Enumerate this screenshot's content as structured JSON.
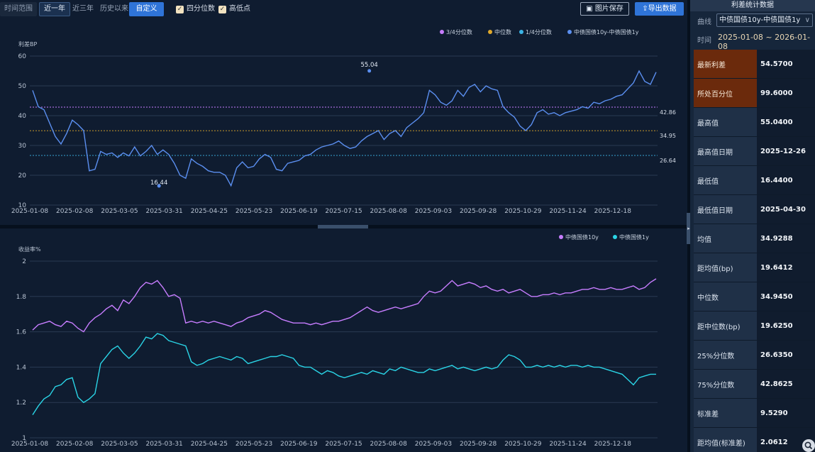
{
  "toolbar": {
    "range_label": "时间范围",
    "ranges": [
      "近一年",
      "近三年",
      "历史以来",
      "自定义"
    ],
    "active_range": "自定义",
    "checkboxes": [
      {
        "label": "四分位数",
        "checked": true
      },
      {
        "label": "高低点",
        "checked": true
      }
    ],
    "save_label": "图片保存",
    "export_label": "导出数据"
  },
  "chart_data": [
    {
      "type": "line",
      "ylabel": "利差BP",
      "ylim": [
        10,
        60
      ],
      "yticks": [
        10,
        20,
        30,
        40,
        50,
        60
      ],
      "x_ticks": [
        "2025-01-08",
        "2025-02-08",
        "2025-03-05",
        "2025-03-31",
        "2025-04-25",
        "2025-05-23",
        "2025-06-19",
        "2025-07-15",
        "2025-08-08",
        "2025-09-03",
        "2025-09-28",
        "2025-10-29",
        "2025-11-24",
        "2025-12-18"
      ],
      "legend": [
        "3/4分位数",
        "中位数",
        "1/4分位数",
        "中债国债10y-中债国债1y"
      ],
      "legend_colors": [
        "#c77dff",
        "#e0a92b",
        "#3bb4e6",
        "#5b8ff0"
      ],
      "reference_lines": [
        {
          "name": "3/4分位数",
          "value": 42.86,
          "label": "42.86",
          "color": "#c77dff"
        },
        {
          "name": "中位数",
          "value": 34.95,
          "label": "34.95",
          "color": "#e0a92b"
        },
        {
          "name": "1/4分位数",
          "value": 26.64,
          "label": "26.64",
          "color": "#3bb4e6"
        }
      ],
      "annotations": [
        {
          "label": "55.04",
          "x_index": 59.4,
          "value": 55.04
        },
        {
          "label": "16.44",
          "x_index": 22.3,
          "value": 16.44
        }
      ],
      "series": [
        {
          "name": "中债国债10y-中债国债1y",
          "color": "#5b8ff0",
          "values": [
            48.5,
            43.0,
            42.0,
            37.5,
            33.0,
            30.5,
            34.0,
            38.5,
            37.0,
            35.0,
            21.5,
            22.0,
            28.0,
            27.0,
            27.5,
            26.0,
            27.5,
            26.5,
            29.5,
            26.5,
            28.0,
            30.0,
            27.0,
            28.5,
            27.0,
            24.0,
            20.0,
            19.0,
            25.5,
            24.0,
            23.0,
            21.5,
            21.0,
            21.0,
            20.0,
            16.5,
            22.5,
            24.5,
            22.5,
            23.0,
            25.5,
            27.0,
            26.0,
            22.0,
            21.5,
            24.0,
            24.5,
            25.0,
            26.5,
            27.0,
            28.5,
            29.5,
            30.0,
            30.5,
            31.5,
            30.0,
            29.0,
            29.5,
            31.5,
            33.0,
            34.0,
            35.0,
            32.0,
            34.0,
            35.0,
            33.0,
            36.0,
            37.5,
            39.0,
            41.0,
            48.5,
            47.0,
            44.5,
            43.5,
            45.0,
            48.5,
            46.5,
            49.5,
            50.5,
            48.0,
            50.0,
            49.0,
            48.5,
            43.0,
            41.0,
            39.5,
            36.5,
            35.0,
            37.0,
            41.0,
            42.0,
            40.5,
            41.0,
            40.0,
            41.0,
            41.5,
            42.0,
            43.0,
            42.5,
            44.5,
            44.0,
            45.0,
            45.5,
            46.5,
            47.0,
            49.0,
            51.0,
            55.0,
            51.5,
            50.5,
            54.6
          ]
        }
      ]
    },
    {
      "type": "line",
      "ylabel": "收益率%",
      "ylim": [
        1,
        2
      ],
      "yticks": [
        1,
        1.2,
        1.4,
        1.6,
        1.8,
        2
      ],
      "x_ticks": [
        "2025-01-08",
        "2025-02-08",
        "2025-03-05",
        "2025-03-31",
        "2025-04-25",
        "2025-05-23",
        "2025-06-19",
        "2025-07-15",
        "2025-08-08",
        "2025-09-03",
        "2025-09-28",
        "2025-10-29",
        "2025-11-24",
        "2025-12-18"
      ],
      "legend": [
        "中债国债10y",
        "中债国债1y"
      ],
      "legend_colors": [
        "#c77dff",
        "#2ad4e6"
      ],
      "series": [
        {
          "name": "中债国债10y",
          "color": "#c77dff",
          "values": [
            1.61,
            1.64,
            1.65,
            1.66,
            1.64,
            1.63,
            1.66,
            1.65,
            1.62,
            1.6,
            1.65,
            1.68,
            1.7,
            1.73,
            1.75,
            1.72,
            1.78,
            1.76,
            1.8,
            1.85,
            1.88,
            1.87,
            1.89,
            1.85,
            1.8,
            1.81,
            1.79,
            1.65,
            1.66,
            1.65,
            1.66,
            1.65,
            1.66,
            1.65,
            1.64,
            1.63,
            1.65,
            1.66,
            1.68,
            1.69,
            1.7,
            1.72,
            1.71,
            1.69,
            1.67,
            1.66,
            1.65,
            1.65,
            1.65,
            1.64,
            1.65,
            1.64,
            1.65,
            1.66,
            1.66,
            1.67,
            1.68,
            1.7,
            1.72,
            1.74,
            1.72,
            1.71,
            1.72,
            1.73,
            1.74,
            1.73,
            1.74,
            1.75,
            1.76,
            1.8,
            1.83,
            1.82,
            1.83,
            1.86,
            1.89,
            1.86,
            1.87,
            1.88,
            1.87,
            1.85,
            1.86,
            1.84,
            1.83,
            1.84,
            1.82,
            1.83,
            1.84,
            1.82,
            1.8,
            1.8,
            1.81,
            1.81,
            1.82,
            1.81,
            1.82,
            1.82,
            1.83,
            1.84,
            1.84,
            1.85,
            1.84,
            1.84,
            1.85,
            1.84,
            1.84,
            1.85,
            1.86,
            1.84,
            1.85,
            1.88,
            1.9
          ]
        },
        {
          "name": "中债国债1y",
          "color": "#2ad4e6",
          "values": [
            1.13,
            1.18,
            1.22,
            1.24,
            1.29,
            1.3,
            1.33,
            1.34,
            1.23,
            1.2,
            1.22,
            1.25,
            1.42,
            1.46,
            1.5,
            1.52,
            1.48,
            1.45,
            1.48,
            1.52,
            1.57,
            1.56,
            1.59,
            1.58,
            1.55,
            1.54,
            1.53,
            1.52,
            1.43,
            1.41,
            1.42,
            1.44,
            1.45,
            1.46,
            1.45,
            1.44,
            1.46,
            1.45,
            1.42,
            1.43,
            1.44,
            1.45,
            1.46,
            1.46,
            1.47,
            1.46,
            1.45,
            1.41,
            1.4,
            1.4,
            1.38,
            1.36,
            1.38,
            1.37,
            1.35,
            1.34,
            1.35,
            1.36,
            1.37,
            1.36,
            1.38,
            1.37,
            1.36,
            1.39,
            1.38,
            1.4,
            1.39,
            1.38,
            1.37,
            1.37,
            1.39,
            1.38,
            1.39,
            1.4,
            1.41,
            1.39,
            1.4,
            1.39,
            1.38,
            1.39,
            1.4,
            1.39,
            1.4,
            1.44,
            1.47,
            1.46,
            1.44,
            1.4,
            1.4,
            1.41,
            1.4,
            1.41,
            1.4,
            1.41,
            1.4,
            1.41,
            1.41,
            1.4,
            1.41,
            1.4,
            1.4,
            1.39,
            1.38,
            1.37,
            1.36,
            1.33,
            1.3,
            1.34,
            1.35,
            1.36,
            1.36
          ]
        }
      ]
    }
  ],
  "panel": {
    "title": "利差统计数据",
    "curve_label": "曲线",
    "curve_value": "中债国债10y-中债国债1y",
    "time_label": "时间",
    "time_value": "2025-01-08 ~ 2026-01-08",
    "stats": [
      {
        "key": "最新利差",
        "value": "54.5700",
        "highlight": true
      },
      {
        "key": "所处百分位",
        "value": "99.6000",
        "highlight": true
      },
      {
        "key": "最高值",
        "value": "55.0400"
      },
      {
        "key": "最高值日期",
        "value": "2025-12-26"
      },
      {
        "key": "最低值",
        "value": "16.4400"
      },
      {
        "key": "最低值日期",
        "value": "2025-04-30"
      },
      {
        "key": "均值",
        "value": "34.9288"
      },
      {
        "key": "距均值(bp)",
        "value": "19.6412"
      },
      {
        "key": "中位数",
        "value": "34.9450"
      },
      {
        "key": "距中位数(bp)",
        "value": "19.6250"
      },
      {
        "key": "25%分位数",
        "value": "26.6350"
      },
      {
        "key": "75%分位数",
        "value": "42.8625"
      },
      {
        "key": "标准差",
        "value": "9.5290"
      },
      {
        "key": "距均值(标准差)",
        "value": "2.0612"
      }
    ]
  }
}
